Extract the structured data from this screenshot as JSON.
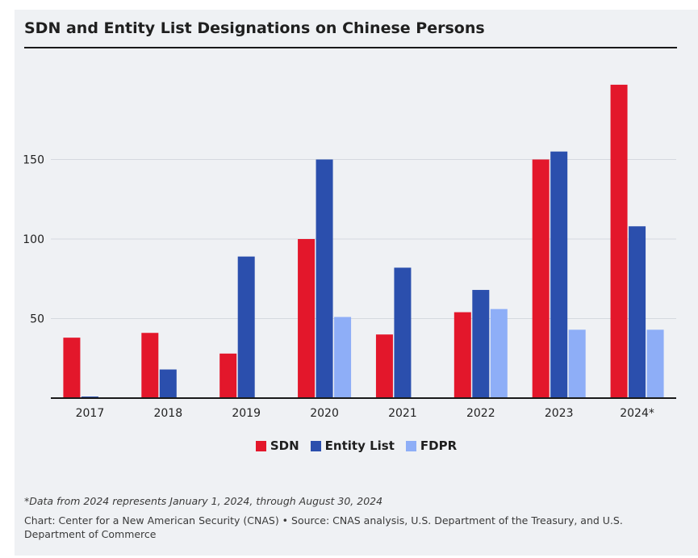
{
  "title": "SDN and Entity List Designations on Chinese Persons",
  "footnote": "*Data from 2024 represents January 1, 2024, through August 30, 2024",
  "source": "Chart: Center for a New American Security (CNAS) • Source: CNAS analysis, U.S. Department of the Treasury, and U.S. Department of Commerce",
  "colors": {
    "SDN": "#e3172b",
    "Entity List": "#2b4fad",
    "FDPR": "#8eaef7",
    "background": "#eff1f4",
    "grid": "#d5d9df"
  },
  "legend": [
    {
      "name": "SDN",
      "color": "#e3172b"
    },
    {
      "name": "Entity List",
      "color": "#2b4fad"
    },
    {
      "name": "FDPR",
      "color": "#8eaef7"
    }
  ],
  "chart_data": {
    "type": "bar",
    "title": "SDN and Entity List Designations on Chinese Persons",
    "xlabel": "",
    "ylabel": "",
    "categories": [
      "2017",
      "2018",
      "2019",
      "2020",
      "2021",
      "2022",
      "2023",
      "2024*"
    ],
    "series": [
      {
        "name": "SDN",
        "values": [
          38,
          41,
          28,
          100,
          40,
          54,
          150,
          197
        ]
      },
      {
        "name": "Entity List",
        "values": [
          1,
          18,
          89,
          150,
          82,
          68,
          155,
          108
        ]
      },
      {
        "name": "FDPR",
        "values": [
          0,
          0,
          0,
          51,
          0,
          56,
          43,
          43
        ]
      }
    ],
    "yticks": [
      50,
      100,
      150
    ],
    "ylim": [
      0,
      205
    ],
    "grid": true,
    "legend_position": "bottom"
  }
}
